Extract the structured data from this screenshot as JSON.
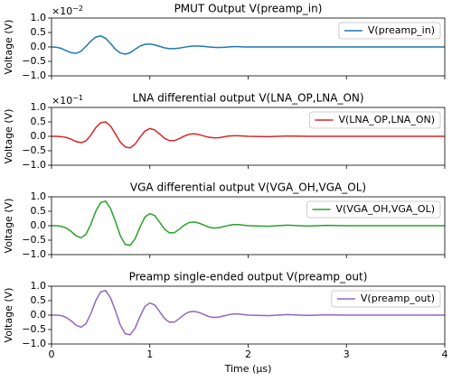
{
  "chart_data": [
    {
      "type": "line",
      "title": "PMUT Output V(preamp_in)",
      "ylabel": "Voltage (V)",
      "offset_text": {
        "base": "×10",
        "exponent": "−2"
      },
      "x": [
        0,
        0.05,
        0.1,
        0.15,
        0.2,
        0.25,
        0.3,
        0.35,
        0.4,
        0.45,
        0.5,
        0.55,
        0.6,
        0.65,
        0.7,
        0.75,
        0.8,
        0.85,
        0.9,
        0.95,
        1.0,
        1.05,
        1.1,
        1.15,
        1.2,
        1.25,
        1.3,
        1.35,
        1.4,
        1.45,
        1.5,
        1.55,
        1.6,
        1.65,
        1.7,
        1.75,
        1.8,
        1.85,
        1.9,
        1.95,
        2.0,
        2.2,
        2.4,
        2.6,
        2.8,
        3.0,
        3.2,
        3.4,
        3.6,
        3.8,
        4.0
      ],
      "series": [
        {
          "name": "V(preamp_in)",
          "color": "#1f77b4",
          "values": [
            0,
            -0.01,
            -0.05,
            -0.13,
            -0.2,
            -0.22,
            -0.15,
            0.02,
            0.2,
            0.34,
            0.38,
            0.3,
            0.12,
            -0.08,
            -0.21,
            -0.25,
            -0.2,
            -0.08,
            0.03,
            0.09,
            0.1,
            0.07,
            0.02,
            -0.03,
            -0.06,
            -0.06,
            -0.04,
            -0.01,
            0.02,
            0.03,
            0.03,
            0.02,
            0,
            -0.01,
            -0.02,
            -0.01,
            0,
            0.01,
            0.01,
            0,
            0,
            0,
            0,
            0,
            0,
            0,
            0,
            0,
            0,
            0,
            0
          ]
        }
      ],
      "xlim": [
        0,
        4
      ],
      "xticks": [
        0,
        1,
        2,
        3,
        4
      ],
      "show_xticklabels": false,
      "ylim": [
        -1,
        1
      ],
      "yticks": [
        {
          "value": -1,
          "label": "−1.0"
        },
        {
          "value": -0.5,
          "label": "−0.5"
        },
        {
          "value": 0,
          "label": "0.0"
        },
        {
          "value": 0.5,
          "label": "0.5"
        },
        {
          "value": 1,
          "label": "1.0"
        }
      ],
      "legend": "upper right"
    },
    {
      "type": "line",
      "title": "LNA differential output V(LNA_OP,LNA_ON)",
      "ylabel": "Voltage (V)",
      "offset_text": {
        "base": "×10",
        "exponent": "−1"
      },
      "x": [
        0,
        0.05,
        0.1,
        0.15,
        0.2,
        0.25,
        0.3,
        0.35,
        0.4,
        0.45,
        0.5,
        0.55,
        0.6,
        0.65,
        0.7,
        0.75,
        0.8,
        0.85,
        0.9,
        0.95,
        1.0,
        1.05,
        1.1,
        1.15,
        1.2,
        1.25,
        1.3,
        1.35,
        1.4,
        1.45,
        1.5,
        1.55,
        1.6,
        1.65,
        1.7,
        1.75,
        1.8,
        1.85,
        1.9,
        1.95,
        2.0,
        2.2,
        2.4,
        2.6,
        2.8,
        3.0,
        3.2,
        3.4,
        3.6,
        3.8,
        4.0
      ],
      "series": [
        {
          "name": "V(LNA_OP,LNA_ON)",
          "color": "#d62728",
          "values": [
            0,
            0,
            -0.01,
            -0.04,
            -0.1,
            -0.18,
            -0.22,
            -0.16,
            0.04,
            0.3,
            0.47,
            0.5,
            0.36,
            0.08,
            -0.2,
            -0.37,
            -0.4,
            -0.27,
            -0.03,
            0.18,
            0.27,
            0.22,
            0.08,
            -0.07,
            -0.15,
            -0.15,
            -0.08,
            0.01,
            0.07,
            0.09,
            0.06,
            0.01,
            -0.03,
            -0.05,
            -0.05,
            -0.02,
            0.01,
            0.02,
            0.02,
            0.01,
            0,
            -0.01,
            0.01,
            0,
            0,
            0,
            0,
            0,
            0,
            0,
            0
          ]
        }
      ],
      "xlim": [
        0,
        4
      ],
      "xticks": [
        0,
        1,
        2,
        3,
        4
      ],
      "show_xticklabels": false,
      "ylim": [
        -1,
        1
      ],
      "yticks": [
        {
          "value": -1,
          "label": "−1.0"
        },
        {
          "value": -0.5,
          "label": "−0.5"
        },
        {
          "value": 0,
          "label": "0.0"
        },
        {
          "value": 0.5,
          "label": "0.5"
        },
        {
          "value": 1,
          "label": "1.0"
        }
      ],
      "legend": "upper right"
    },
    {
      "type": "line",
      "title": "VGA differential output V(VGA_OH,VGA_OL)",
      "ylabel": "Voltage (V)",
      "x": [
        0,
        0.05,
        0.1,
        0.15,
        0.2,
        0.25,
        0.3,
        0.35,
        0.4,
        0.45,
        0.5,
        0.55,
        0.6,
        0.65,
        0.7,
        0.75,
        0.8,
        0.85,
        0.9,
        0.95,
        1.0,
        1.05,
        1.1,
        1.15,
        1.2,
        1.25,
        1.3,
        1.35,
        1.4,
        1.45,
        1.5,
        1.55,
        1.6,
        1.65,
        1.7,
        1.75,
        1.8,
        1.85,
        1.9,
        1.95,
        2.0,
        2.2,
        2.4,
        2.6,
        2.8,
        3.0,
        3.2,
        3.4,
        3.6,
        3.8,
        4.0
      ],
      "series": [
        {
          "name": "V(VGA_OH,VGA_OL)",
          "color": "#2ca02c",
          "values": [
            0,
            0,
            -0.02,
            -0.08,
            -0.2,
            -0.35,
            -0.42,
            -0.3,
            0.05,
            0.5,
            0.8,
            0.85,
            0.6,
            0.15,
            -0.35,
            -0.65,
            -0.68,
            -0.45,
            -0.05,
            0.3,
            0.42,
            0.35,
            0.12,
            -0.12,
            -0.25,
            -0.24,
            -0.12,
            0.02,
            0.11,
            0.13,
            0.09,
            0.02,
            -0.05,
            -0.08,
            -0.07,
            -0.03,
            0.01,
            0.04,
            0.04,
            0.02,
            0,
            -0.02,
            0.02,
            -0.01,
            0.01,
            0,
            0,
            0,
            0,
            0,
            0
          ]
        }
      ],
      "xlim": [
        0,
        4
      ],
      "xticks": [
        0,
        1,
        2,
        3,
        4
      ],
      "show_xticklabels": false,
      "ylim": [
        -1,
        1
      ],
      "yticks": [
        {
          "value": -1,
          "label": "−1.0"
        },
        {
          "value": -0.5,
          "label": "−0.5"
        },
        {
          "value": 0,
          "label": "0.0"
        },
        {
          "value": 0.5,
          "label": "0.5"
        },
        {
          "value": 1,
          "label": "1.0"
        }
      ],
      "legend": "upper right"
    },
    {
      "type": "line",
      "title": "Preamp single-ended output V(preamp_out)",
      "ylabel": "Voltage (V)",
      "xlabel": "Time (µs)",
      "x": [
        0,
        0.05,
        0.1,
        0.15,
        0.2,
        0.25,
        0.3,
        0.35,
        0.4,
        0.45,
        0.5,
        0.55,
        0.6,
        0.65,
        0.7,
        0.75,
        0.8,
        0.85,
        0.9,
        0.95,
        1.0,
        1.05,
        1.1,
        1.15,
        1.2,
        1.25,
        1.3,
        1.35,
        1.4,
        1.45,
        1.5,
        1.55,
        1.6,
        1.65,
        1.7,
        1.75,
        1.8,
        1.85,
        1.9,
        1.95,
        2.0,
        2.2,
        2.4,
        2.6,
        2.8,
        3.0,
        3.2,
        3.4,
        3.6,
        3.8,
        4.0
      ],
      "series": [
        {
          "name": "V(preamp_out)",
          "color": "#9467bd",
          "values": [
            0,
            0,
            -0.02,
            -0.08,
            -0.2,
            -0.35,
            -0.42,
            -0.3,
            0.05,
            0.5,
            0.8,
            0.85,
            0.6,
            0.15,
            -0.35,
            -0.65,
            -0.68,
            -0.45,
            -0.05,
            0.3,
            0.42,
            0.35,
            0.12,
            -0.12,
            -0.25,
            -0.24,
            -0.12,
            0.02,
            0.11,
            0.13,
            0.09,
            0.02,
            -0.05,
            -0.08,
            -0.07,
            -0.03,
            0.01,
            0.04,
            0.04,
            0.02,
            0,
            -0.02,
            0.02,
            -0.01,
            0.01,
            0,
            0,
            0,
            0,
            0,
            0
          ]
        }
      ],
      "xlim": [
        0,
        4
      ],
      "xticks": [
        0,
        1,
        2,
        3,
        4
      ],
      "show_xticklabels": true,
      "ylim": [
        -1,
        1
      ],
      "yticks": [
        {
          "value": -1,
          "label": "−1.0"
        },
        {
          "value": -0.5,
          "label": "−0.5"
        },
        {
          "value": 0,
          "label": "0.0"
        },
        {
          "value": 0.5,
          "label": "0.5"
        },
        {
          "value": 1,
          "label": "1.0"
        }
      ],
      "legend": "upper right"
    }
  ]
}
